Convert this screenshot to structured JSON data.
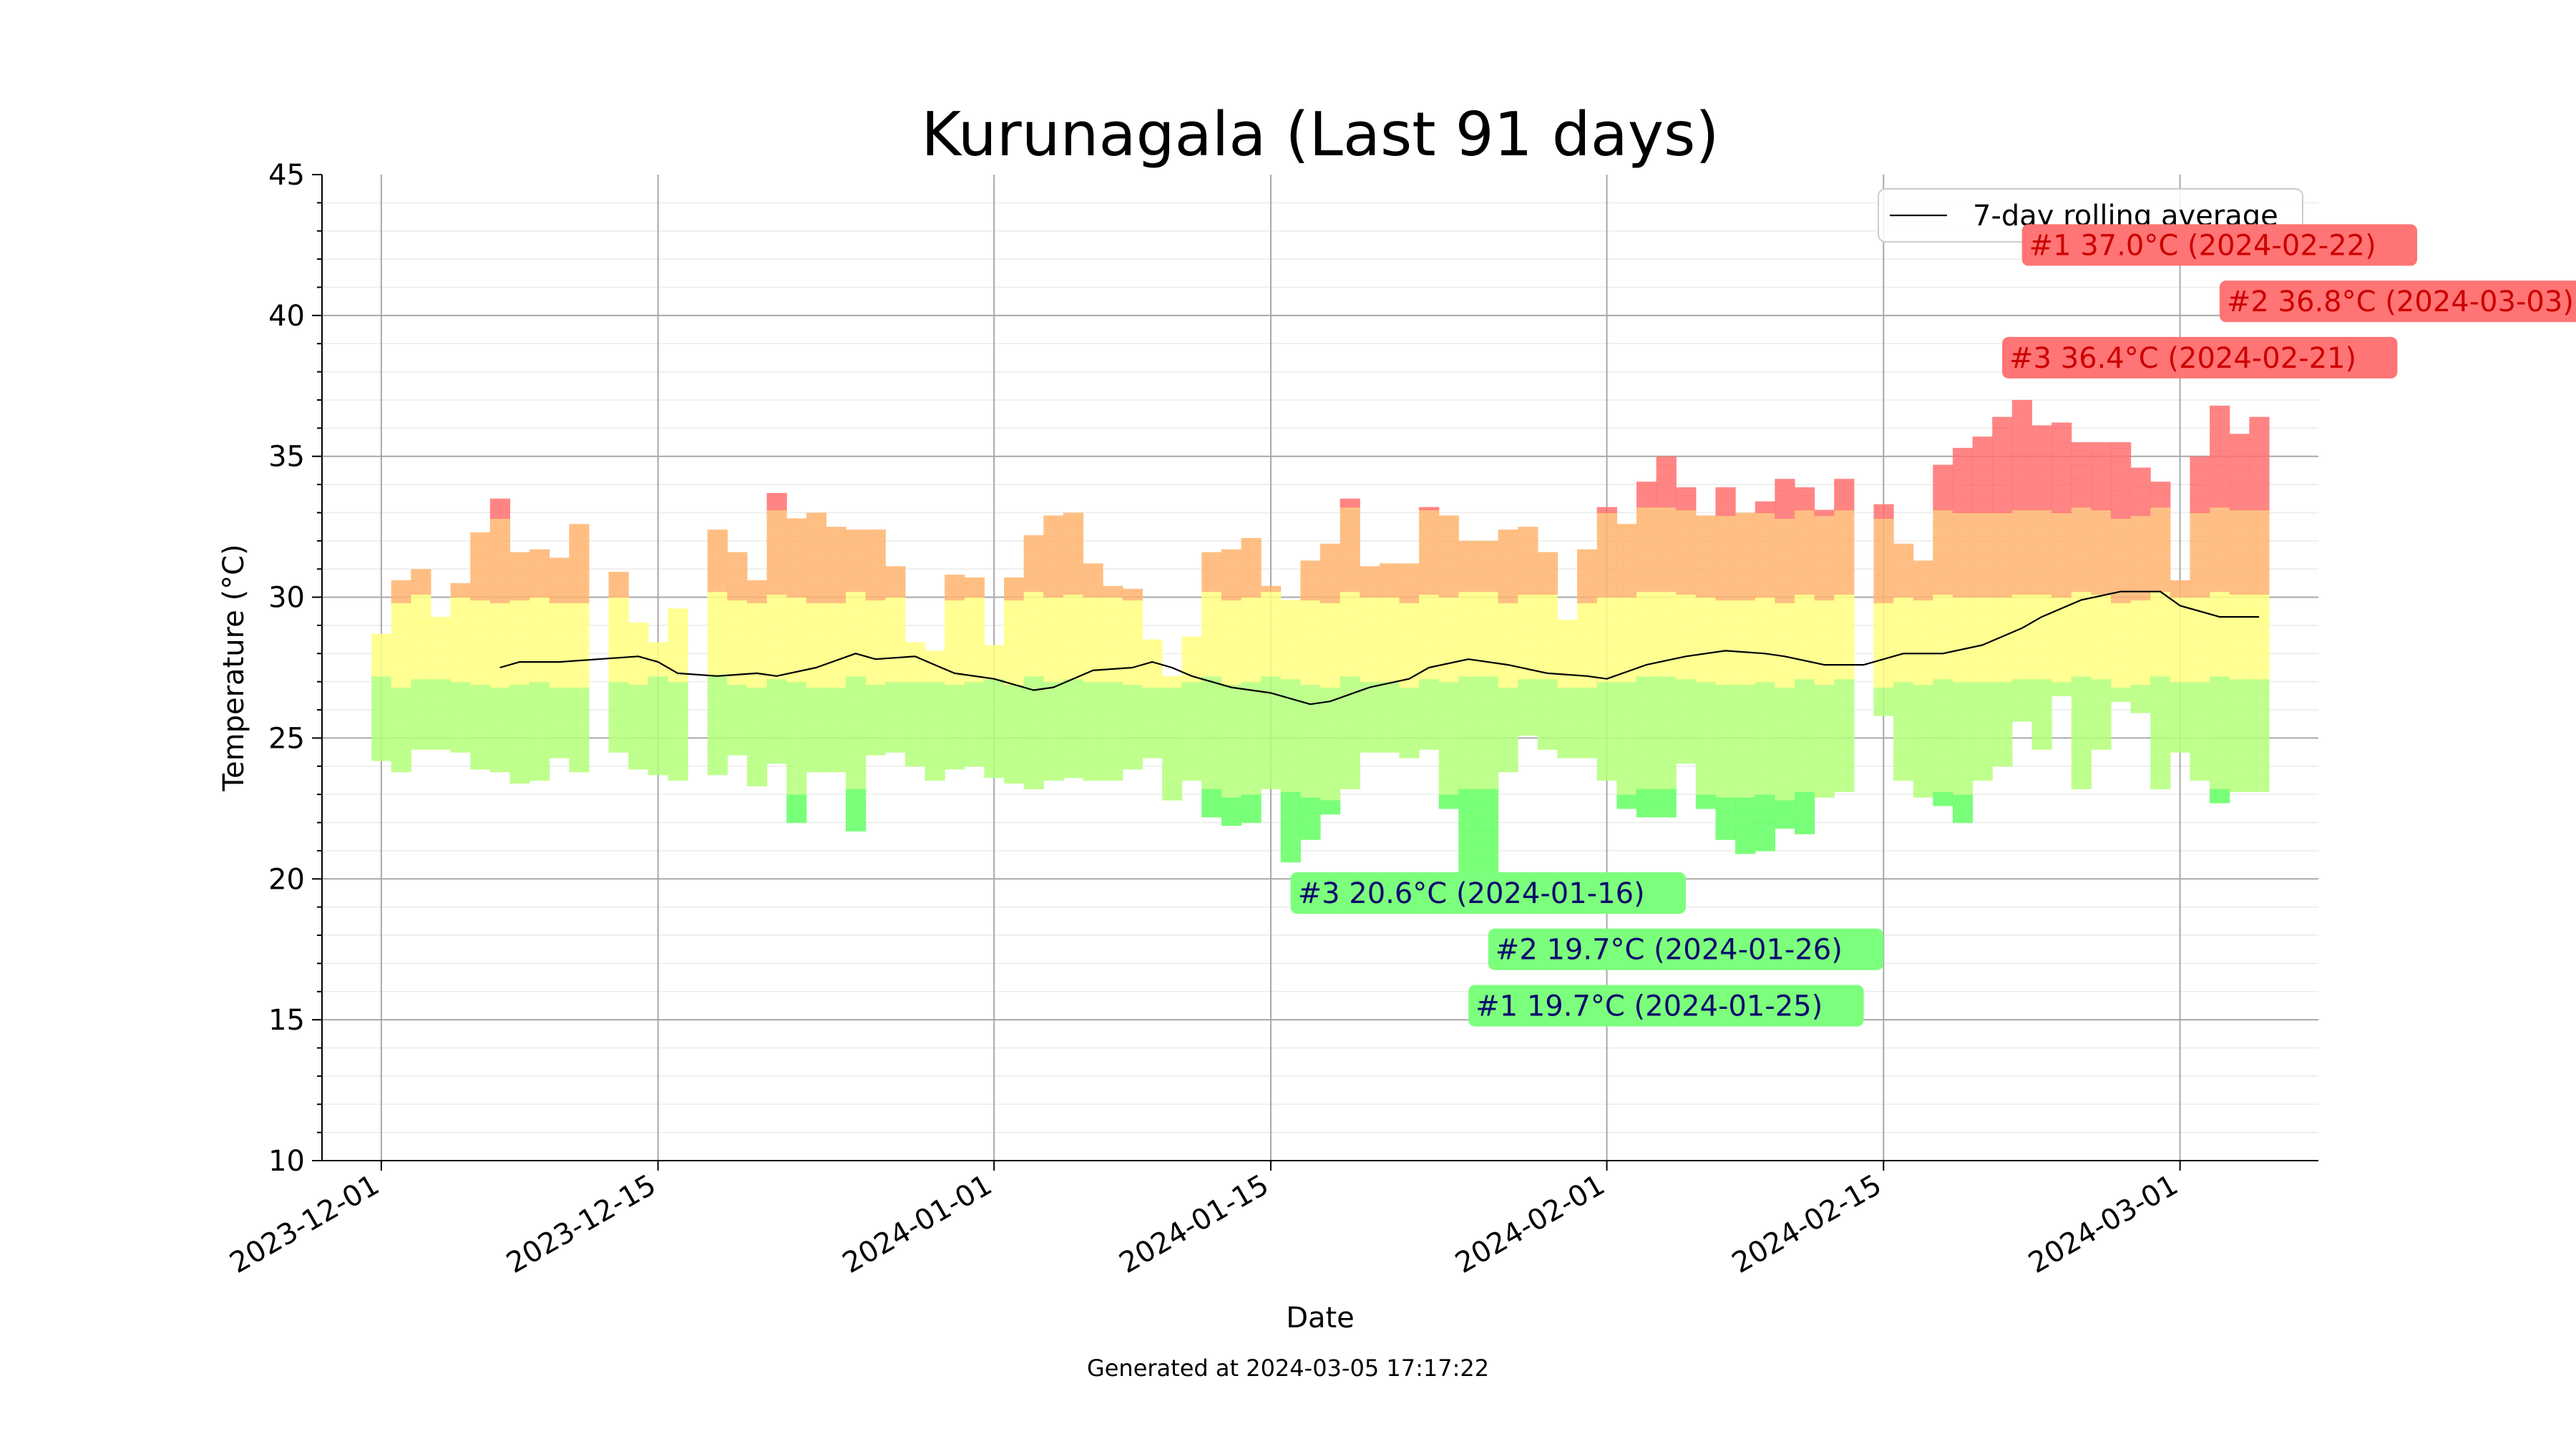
{
  "chart_data": {
    "type": "bar",
    "title": "Kurunagala (Last 91 days)",
    "xlabel": "Date",
    "ylabel": "Temperature (°C)",
    "footer": "Generated at 2024-03-05 17:17:22",
    "ylim": [
      10,
      45
    ],
    "y_ticks": [
      "10",
      "15",
      "20",
      "25",
      "30",
      "35",
      "40",
      "45"
    ],
    "x_axis_start": "2023-11-28",
    "x_axis_end": "2024-03-08",
    "x_ticks": [
      "2023-12-01",
      "2023-12-15",
      "2024-01-01",
      "2024-01-15",
      "2024-02-01",
      "2024-02-15",
      "2024-03-01"
    ],
    "grid": true,
    "legend": {
      "position": "top-right",
      "entries": [
        "7-day rolling average"
      ]
    },
    "colors": {
      "cold": "#63ff63",
      "cool": "#b4ff7a",
      "mild": "#ffff80",
      "warm": "#ffb46e",
      "hot": "#ff7070",
      "rolling_line": "#000000",
      "ann_hot_bg": "#ff7474",
      "ann_hot_text": "#cc0000",
      "ann_cold_bg": "#7cff7c",
      "ann_cold_text": "#0a0a6e"
    },
    "daily_ranges": {
      "fields": [
        "date",
        "min_c",
        "max_c"
      ],
      "rows": [
        [
          "2023-12-01",
          24.2,
          28.7
        ],
        [
          "2023-12-02",
          23.8,
          30.6
        ],
        [
          "2023-12-03",
          24.6,
          31.0
        ],
        [
          "2023-12-04",
          24.6,
          29.3
        ],
        [
          "2023-12-05",
          24.5,
          30.5
        ],
        [
          "2023-12-06",
          23.9,
          32.3
        ],
        [
          "2023-12-07",
          23.8,
          33.5
        ],
        [
          "2023-12-08",
          23.4,
          31.6
        ],
        [
          "2023-12-09",
          23.5,
          31.7
        ],
        [
          "2023-12-10",
          24.3,
          31.4
        ],
        [
          "2023-12-11",
          23.8,
          32.6
        ],
        [
          "2023-12-13",
          24.5,
          30.9
        ],
        [
          "2023-12-14",
          23.9,
          29.1
        ],
        [
          "2023-12-15",
          23.7,
          28.4
        ],
        [
          "2023-12-16",
          23.5,
          29.6
        ],
        [
          "2023-12-18",
          23.7,
          32.4
        ],
        [
          "2023-12-19",
          24.4,
          31.6
        ],
        [
          "2023-12-20",
          23.3,
          30.6
        ],
        [
          "2023-12-21",
          24.1,
          33.7
        ],
        [
          "2023-12-22",
          22.0,
          32.8
        ],
        [
          "2023-12-23",
          23.8,
          33.0
        ],
        [
          "2023-12-24",
          23.8,
          32.5
        ],
        [
          "2023-12-25",
          21.7,
          32.4
        ],
        [
          "2023-12-26",
          24.4,
          32.4
        ],
        [
          "2023-12-27",
          24.5,
          31.1
        ],
        [
          "2023-12-28",
          24.0,
          28.4
        ],
        [
          "2023-12-29",
          23.5,
          28.1
        ],
        [
          "2023-12-30",
          23.9,
          30.8
        ],
        [
          "2023-12-31",
          24.0,
          30.7
        ],
        [
          "2024-01-01",
          23.6,
          28.3
        ],
        [
          "2024-01-02",
          23.4,
          30.7
        ],
        [
          "2024-01-03",
          23.2,
          32.2
        ],
        [
          "2024-01-04",
          23.5,
          32.9
        ],
        [
          "2024-01-05",
          23.6,
          33.0
        ],
        [
          "2024-01-06",
          23.5,
          31.2
        ],
        [
          "2024-01-07",
          23.5,
          30.4
        ],
        [
          "2024-01-08",
          23.9,
          30.3
        ],
        [
          "2024-01-09",
          24.3,
          28.5
        ],
        [
          "2024-01-10",
          22.8,
          27.2
        ],
        [
          "2024-01-11",
          23.5,
          28.6
        ],
        [
          "2024-01-12",
          22.2,
          31.6
        ],
        [
          "2024-01-13",
          21.9,
          31.7
        ],
        [
          "2024-01-14",
          22.0,
          32.1
        ],
        [
          "2024-01-15",
          23.2,
          30.4
        ],
        [
          "2024-01-16",
          20.6,
          29.9
        ],
        [
          "2024-01-17",
          21.4,
          31.3
        ],
        [
          "2024-01-18",
          22.3,
          31.9
        ],
        [
          "2024-01-19",
          23.2,
          33.5
        ],
        [
          "2024-01-20",
          24.5,
          31.1
        ],
        [
          "2024-01-21",
          24.5,
          31.2
        ],
        [
          "2024-01-22",
          24.3,
          31.2
        ],
        [
          "2024-01-23",
          24.6,
          33.2
        ],
        [
          "2024-01-24",
          22.5,
          32.9
        ],
        [
          "2024-01-25",
          19.7,
          32.0
        ],
        [
          "2024-01-26",
          19.7,
          32.0
        ],
        [
          "2024-01-27",
          23.8,
          32.4
        ],
        [
          "2024-01-28",
          25.1,
          32.5
        ],
        [
          "2024-01-29",
          24.6,
          31.6
        ],
        [
          "2024-01-30",
          24.3,
          29.2
        ],
        [
          "2024-01-31",
          24.3,
          31.7
        ],
        [
          "2024-02-01",
          23.5,
          33.2
        ],
        [
          "2024-02-02",
          22.5,
          32.6
        ],
        [
          "2024-02-03",
          22.2,
          34.1
        ],
        [
          "2024-02-04",
          22.2,
          35.0
        ],
        [
          "2024-02-05",
          24.1,
          33.9
        ],
        [
          "2024-02-06",
          22.5,
          32.9
        ],
        [
          "2024-02-07",
          21.4,
          33.9
        ],
        [
          "2024-02-08",
          20.9,
          33.0
        ],
        [
          "2024-02-09",
          21.0,
          33.4
        ],
        [
          "2024-02-10",
          21.8,
          34.2
        ],
        [
          "2024-02-11",
          21.6,
          33.9
        ],
        [
          "2024-02-12",
          22.9,
          33.1
        ],
        [
          "2024-02-13",
          23.1,
          34.2
        ],
        [
          "2024-02-15",
          25.8,
          33.3
        ],
        [
          "2024-02-16",
          23.5,
          31.9
        ],
        [
          "2024-02-17",
          22.9,
          31.3
        ],
        [
          "2024-02-18",
          22.6,
          34.7
        ],
        [
          "2024-02-19",
          22.0,
          35.3
        ],
        [
          "2024-02-20",
          23.5,
          35.7
        ],
        [
          "2024-02-21",
          24.0,
          36.4
        ],
        [
          "2024-02-22",
          25.6,
          37.0
        ],
        [
          "2024-02-23",
          24.6,
          36.1
        ],
        [
          "2024-02-24",
          26.5,
          36.2
        ],
        [
          "2024-02-25",
          23.2,
          35.5
        ],
        [
          "2024-02-26",
          24.6,
          35.5
        ],
        [
          "2024-02-27",
          26.3,
          35.5
        ],
        [
          "2024-02-28",
          25.9,
          34.6
        ],
        [
          "2024-02-29",
          23.2,
          34.1
        ],
        [
          "2024-03-01",
          24.5,
          30.6
        ],
        [
          "2024-03-02",
          23.5,
          35.0
        ],
        [
          "2024-03-03",
          22.7,
          36.8
        ],
        [
          "2024-03-04",
          23.1,
          35.8
        ],
        [
          "2024-03-05",
          23.1,
          36.4
        ]
      ]
    },
    "rolling_average": {
      "name": "7-day rolling average",
      "fields": [
        "date",
        "temp_c"
      ],
      "rows": [
        [
          "2023-12-07",
          27.5
        ],
        [
          "2023-12-08",
          27.7
        ],
        [
          "2023-12-10",
          27.7
        ],
        [
          "2023-12-12",
          27.8
        ],
        [
          "2023-12-14",
          27.9
        ],
        [
          "2023-12-15",
          27.7
        ],
        [
          "2023-12-16",
          27.3
        ],
        [
          "2023-12-18",
          27.2
        ],
        [
          "2023-12-20",
          27.3
        ],
        [
          "2023-12-21",
          27.2
        ],
        [
          "2023-12-23",
          27.5
        ],
        [
          "2023-12-25",
          28.0
        ],
        [
          "2023-12-26",
          27.8
        ],
        [
          "2023-12-28",
          27.9
        ],
        [
          "2023-12-29",
          27.6
        ],
        [
          "2023-12-30",
          27.3
        ],
        [
          "2024-01-01",
          27.1
        ],
        [
          "2024-01-03",
          26.7
        ],
        [
          "2024-01-04",
          26.8
        ],
        [
          "2024-01-06",
          27.4
        ],
        [
          "2024-01-08",
          27.5
        ],
        [
          "2024-01-09",
          27.7
        ],
        [
          "2024-01-10",
          27.5
        ],
        [
          "2024-01-11",
          27.2
        ],
        [
          "2024-01-13",
          26.8
        ],
        [
          "2024-01-15",
          26.6
        ],
        [
          "2024-01-17",
          26.2
        ],
        [
          "2024-01-18",
          26.3
        ],
        [
          "2024-01-20",
          26.8
        ],
        [
          "2024-01-22",
          27.1
        ],
        [
          "2024-01-23",
          27.5
        ],
        [
          "2024-01-25",
          27.8
        ],
        [
          "2024-01-27",
          27.6
        ],
        [
          "2024-01-29",
          27.3
        ],
        [
          "2024-01-31",
          27.2
        ],
        [
          "2024-02-01",
          27.1
        ],
        [
          "2024-02-03",
          27.6
        ],
        [
          "2024-02-05",
          27.9
        ],
        [
          "2024-02-07",
          28.1
        ],
        [
          "2024-02-09",
          28.0
        ],
        [
          "2024-02-10",
          27.9
        ],
        [
          "2024-02-12",
          27.6
        ],
        [
          "2024-02-14",
          27.6
        ],
        [
          "2024-02-16",
          28.0
        ],
        [
          "2024-02-18",
          28.0
        ],
        [
          "2024-02-20",
          28.3
        ],
        [
          "2024-02-22",
          28.9
        ],
        [
          "2024-02-23",
          29.3
        ],
        [
          "2024-02-25",
          29.9
        ],
        [
          "2024-02-27",
          30.2
        ],
        [
          "2024-02-29",
          30.2
        ],
        [
          "2024-03-01",
          29.7
        ],
        [
          "2024-03-03",
          29.3
        ],
        [
          "2024-03-05",
          29.3
        ]
      ]
    },
    "annotations": [
      {
        "label": "#1 37.0°C (2024-02-22)",
        "kind": "hot",
        "anchor_date": "2024-02-22",
        "anchor_temp": 42.5
      },
      {
        "label": "#2 36.8°C (2024-03-03)",
        "kind": "hot",
        "anchor_date": "2024-03-03",
        "anchor_temp": 40.5
      },
      {
        "label": "#3 36.4°C (2024-02-21)",
        "kind": "hot",
        "anchor_date": "2024-02-21",
        "anchor_temp": 38.5
      },
      {
        "label": "#3 20.6°C (2024-01-16)",
        "kind": "cold",
        "anchor_date": "2024-01-16",
        "anchor_temp": 19.5
      },
      {
        "label": "#2 19.7°C (2024-01-26)",
        "kind": "cold",
        "anchor_date": "2024-01-26",
        "anchor_temp": 17.5
      },
      {
        "label": "#1 19.7°C (2024-01-25)",
        "kind": "cold",
        "anchor_date": "2024-01-25",
        "anchor_temp": 15.5
      }
    ]
  }
}
